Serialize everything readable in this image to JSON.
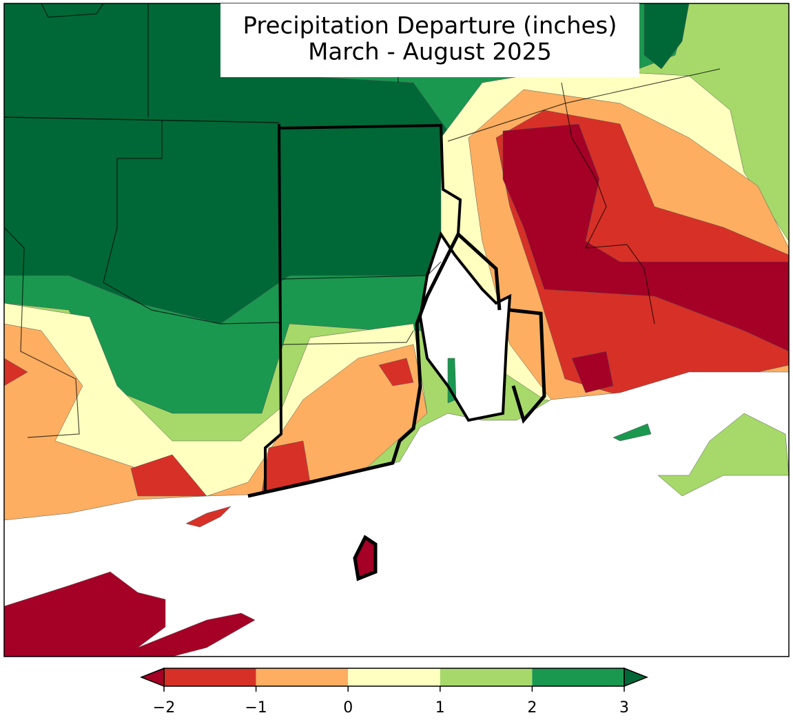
{
  "map": {
    "title_lines": [
      "Precipitation Departure (inches)",
      "March - August 2025"
    ]
  },
  "colorbar": {
    "lim": [
      -2,
      3
    ],
    "ticks": [
      {
        "value": -2,
        "label": "−2"
      },
      {
        "value": -1,
        "label": "−1"
      },
      0,
      1,
      2,
      3
    ],
    "colors": [
      "#d73027",
      "#fdae61",
      "#ffffbf",
      "#a6d96a",
      "#1a9850"
    ],
    "under_color": "#a50026",
    "over_color": "#006837"
  }
}
